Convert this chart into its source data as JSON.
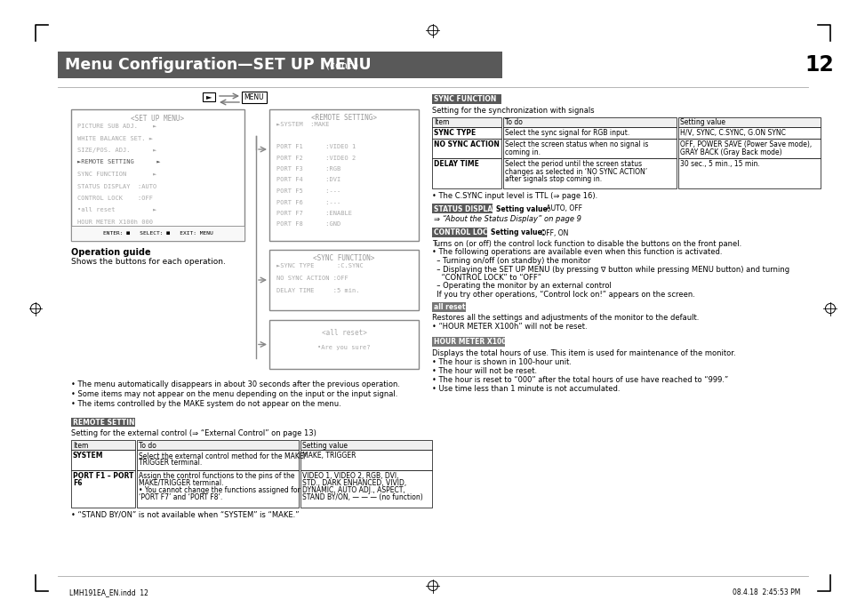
{
  "bg_color": "#ffffff",
  "header_bg": "#595959",
  "page_number": "12",
  "menu_box": {
    "title": "<SET UP MENU>",
    "lines": [
      "PICTURE SUB ADJ.    ►",
      "WHITE BALANCE SET. ►",
      "SIZE/POS. ADJ.      ►",
      "►REMOTE SETTING      ►",
      "SYNC FUNCTION       ►",
      "STATUS DISPLAY  :AUTO",
      "CONTROL LOCK    :OFF",
      "•all reset          ►",
      "HOUR METER X100h 000"
    ],
    "bottom": "ENTER: ■   SELECT: ■   EXIT: MENU"
  },
  "remote_box": {
    "title": "<REMOTE SETTING>",
    "lines": [
      "►SYSTEM  :MAKE",
      "",
      "PORT F1      :VIDEO 1",
      "PORT F2      :VIDEO 2",
      "PORT F3      :RGB",
      "PORT F4      :DVI",
      "PORT F5      :---",
      "PORT F6      :---",
      "PORT F7      :ENABLE",
      "PORT F8      :GND"
    ]
  },
  "sync_box": {
    "title": "<SYNC FUNCTION>",
    "lines": [
      "►SYNC TYPE      :C.SYNC",
      "NO SYNC ACTION :OFF",
      "DELAY TIME     :5 min."
    ]
  },
  "reset_box": {
    "title": "<all reset>",
    "body": "•Are you sure?"
  },
  "operation_guide_title": "Operation guide",
  "operation_guide_text": "Shows the buttons for each operation.",
  "bullets_bottom": [
    "The menu automatically disappears in about 30 seconds after the previous operation.",
    "Some items may not appear on the menu depending on the input or the input signal.",
    "The items controlled by the MAKE system do not appear on the menu."
  ],
  "sync_section_label": "SYNC FUNCTION",
  "sync_section_subtitle": "Setting for the synchronization with signals",
  "sync_table_headers": [
    "Item",
    "To do",
    "Setting value"
  ],
  "sync_table_rows": [
    [
      "SYNC TYPE",
      "Select the sync signal for RGB input.",
      "H/V, SYNC, C.SYNC, G.ON SYNC"
    ],
    [
      "NO SYNC ACTION",
      "Select the screen status when no signal is\ncoming in.",
      "OFF, POWER SAVE (Power Save mode),\nGRAY BACK (Gray Back mode)"
    ],
    [
      "DELAY TIME",
      "Select the period until the screen status\nchanges as selected in ‘NO SYNC ACTION’\nafter signals stop coming in.",
      "30 sec., 5 min., 15 min."
    ]
  ],
  "sync_note": "• The C.SYNC input level is TTL (⇒ page 16).",
  "status_label": "STATUS DISPLAY",
  "status_setting": "Setting value: AUTO, OFF",
  "status_ref": "⇒ “About the Status Display” on page 9",
  "control_label": "CONTROL LOCK",
  "control_setting": "Setting value: OFF, ON",
  "control_desc": [
    "Turns on (or off) the control lock function to disable the buttons on the front panel.",
    "• The following operations are available even when this function is activated.",
    "  – Turning on/off (on standby) the monitor",
    "  – Displaying the SET UP MENU (by pressing ∇ button while pressing MENU button) and turning",
    "    “CONTROL LOCK” to “OFF”",
    "  – Operating the monitor by an external control",
    "  If you try other operations, “Control lock on!” appears on the screen."
  ],
  "all_reset_label": "all reset",
  "all_reset_desc": [
    "Restores all the settings and adjustments of the monitor to the default.",
    "• “HOUR METER X100h” will not be reset."
  ],
  "hour_label": "HOUR METER X100h",
  "hour_desc": [
    "Displays the total hours of use. This item is used for maintenance of the monitor.",
    "• The hour is shown in 100-hour unit.",
    "• The hour will not be reset.",
    "• The hour is reset to “000” after the total hours of use have reached to “999.”",
    "• Use time less than 1 minute is not accumulated."
  ],
  "remote_label": "REMOTE SETTING",
  "remote_subtitle": "Setting for the external control (⇒ “External Control” on page 13)",
  "remote_table_headers": [
    "Item",
    "To do",
    "Setting value"
  ],
  "remote_table_rows": [
    [
      "SYSTEM",
      "Select the external control method for the MAKE/\nTRIGGER terminal.",
      "MAKE, TRIGGER"
    ],
    [
      "PORT F1 – PORT\nF6",
      "Assign the control functions to the pins of the\nMAKE/TRIGGER terminal.\n• You cannot change the functions assigned for\n‘PORT F7’ and ‘PORT F8’.",
      "VIDEO 1, VIDEO 2, RGB, DVI,\nSTD., DARK ENHANCED, VIVID,\nDYNAMIC, AUTO ADJ., ASPECT,\nSTAND BY/ON, — — — (no function)"
    ]
  ],
  "remote_note": "• “STAND BY/ON” is not available when “SYSTEM” is “MAKE.”",
  "footer_left": "LMH191EA_EN.indd  12",
  "footer_right": "08.4.18  2:45:53 PM"
}
